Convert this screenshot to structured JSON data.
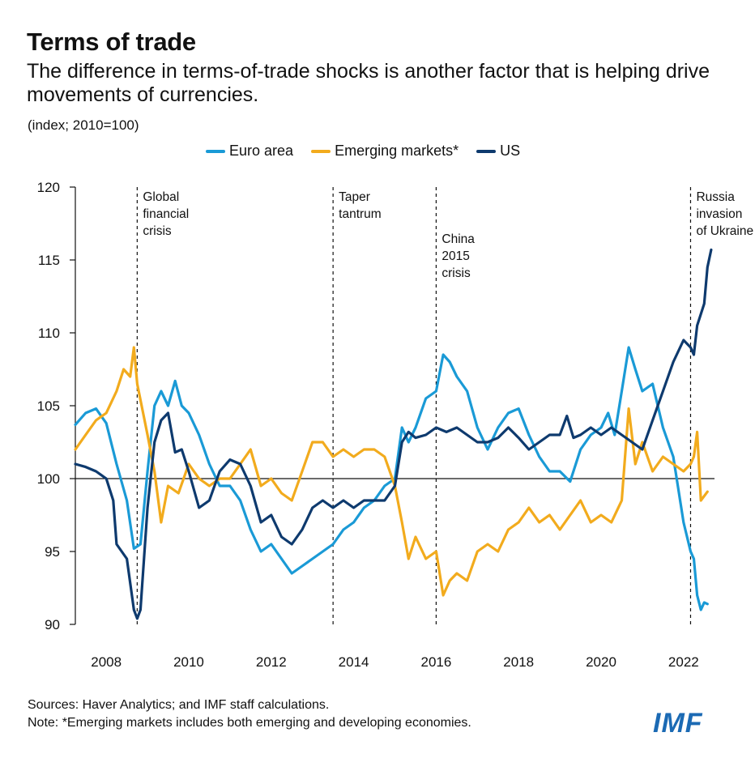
{
  "header": {
    "title": "Terms of trade",
    "subtitle": "The difference in terms-of-trade shocks is another factor that is helping drive movements of currencies.",
    "units": "(index; 2010=100)"
  },
  "footer": {
    "sources": "Sources: Haver Analytics; and IMF staff calculations.",
    "note": "Note: *Emerging markets includes both emerging and developing economies."
  },
  "logo": "IMF",
  "chart_data": {
    "type": "line",
    "ylim": [
      90,
      120
    ],
    "xlim": [
      2007.25,
      2022.75
    ],
    "yticks": [
      90,
      95,
      100,
      105,
      110,
      115,
      120
    ],
    "xticks": [
      2008,
      2010,
      2012,
      2014,
      2016,
      2018,
      2020,
      2022
    ],
    "baseline": 100,
    "grid": false,
    "legend_position": "top",
    "series": [
      {
        "name": "Euro area",
        "color": "#1a9ad6",
        "points": [
          [
            2007.25,
            103.7
          ],
          [
            2007.5,
            104.5
          ],
          [
            2007.75,
            104.8
          ],
          [
            2008.0,
            103.8
          ],
          [
            2008.25,
            101.0
          ],
          [
            2008.5,
            98.5
          ],
          [
            2008.67,
            95.2
          ],
          [
            2008.83,
            95.5
          ],
          [
            2009.0,
            100.5
          ],
          [
            2009.17,
            105.0
          ],
          [
            2009.33,
            106.0
          ],
          [
            2009.5,
            105.0
          ],
          [
            2009.67,
            106.7
          ],
          [
            2009.83,
            105.0
          ],
          [
            2010.0,
            104.5
          ],
          [
            2010.25,
            103.0
          ],
          [
            2010.5,
            101.0
          ],
          [
            2010.75,
            99.5
          ],
          [
            2011.0,
            99.5
          ],
          [
            2011.25,
            98.5
          ],
          [
            2011.5,
            96.5
          ],
          [
            2011.75,
            95.0
          ],
          [
            2012.0,
            95.5
          ],
          [
            2012.25,
            94.5
          ],
          [
            2012.5,
            93.5
          ],
          [
            2012.75,
            94.0
          ],
          [
            2013.0,
            94.5
          ],
          [
            2013.25,
            95.0
          ],
          [
            2013.5,
            95.5
          ],
          [
            2013.75,
            96.5
          ],
          [
            2014.0,
            97.0
          ],
          [
            2014.25,
            98.0
          ],
          [
            2014.5,
            98.5
          ],
          [
            2014.75,
            99.5
          ],
          [
            2015.0,
            100.0
          ],
          [
            2015.17,
            103.5
          ],
          [
            2015.33,
            102.5
          ],
          [
            2015.5,
            103.5
          ],
          [
            2015.75,
            105.5
          ],
          [
            2016.0,
            106.0
          ],
          [
            2016.17,
            108.5
          ],
          [
            2016.33,
            108.0
          ],
          [
            2016.5,
            107.0
          ],
          [
            2016.75,
            106.0
          ],
          [
            2017.0,
            103.5
          ],
          [
            2017.25,
            102.0
          ],
          [
            2017.5,
            103.5
          ],
          [
            2017.75,
            104.5
          ],
          [
            2018.0,
            104.8
          ],
          [
            2018.25,
            103.0
          ],
          [
            2018.5,
            101.5
          ],
          [
            2018.75,
            100.5
          ],
          [
            2019.0,
            100.5
          ],
          [
            2019.25,
            99.8
          ],
          [
            2019.5,
            102.0
          ],
          [
            2019.75,
            103.0
          ],
          [
            2020.0,
            103.5
          ],
          [
            2020.17,
            104.5
          ],
          [
            2020.33,
            103.0
          ],
          [
            2020.5,
            106.0
          ],
          [
            2020.67,
            109.0
          ],
          [
            2020.83,
            107.5
          ],
          [
            2021.0,
            106.0
          ],
          [
            2021.25,
            106.5
          ],
          [
            2021.5,
            103.5
          ],
          [
            2021.75,
            101.5
          ],
          [
            2022.0,
            97.0
          ],
          [
            2022.17,
            95.0
          ],
          [
            2022.25,
            94.5
          ],
          [
            2022.33,
            92.0
          ],
          [
            2022.42,
            91.0
          ],
          [
            2022.5,
            91.5
          ],
          [
            2022.58,
            91.4
          ]
        ]
      },
      {
        "name": "Emerging markets*",
        "color": "#f2ab1d",
        "points": [
          [
            2007.25,
            102.0
          ],
          [
            2007.5,
            103.0
          ],
          [
            2007.75,
            104.0
          ],
          [
            2008.0,
            104.5
          ],
          [
            2008.25,
            106.0
          ],
          [
            2008.42,
            107.5
          ],
          [
            2008.58,
            107.0
          ],
          [
            2008.67,
            109.0
          ],
          [
            2008.75,
            106.5
          ],
          [
            2009.0,
            103.0
          ],
          [
            2009.17,
            100.5
          ],
          [
            2009.33,
            97.0
          ],
          [
            2009.5,
            99.5
          ],
          [
            2009.75,
            99.0
          ],
          [
            2010.0,
            101.0
          ],
          [
            2010.25,
            100.0
          ],
          [
            2010.5,
            99.5
          ],
          [
            2010.75,
            100.0
          ],
          [
            2011.0,
            100.0
          ],
          [
            2011.25,
            101.0
          ],
          [
            2011.5,
            102.0
          ],
          [
            2011.75,
            99.5
          ],
          [
            2012.0,
            100.0
          ],
          [
            2012.25,
            99.0
          ],
          [
            2012.5,
            98.5
          ],
          [
            2012.75,
            100.5
          ],
          [
            2013.0,
            102.5
          ],
          [
            2013.25,
            102.5
          ],
          [
            2013.5,
            101.5
          ],
          [
            2013.75,
            102.0
          ],
          [
            2014.0,
            101.5
          ],
          [
            2014.25,
            102.0
          ],
          [
            2014.5,
            102.0
          ],
          [
            2014.75,
            101.5
          ],
          [
            2015.0,
            99.5
          ],
          [
            2015.17,
            97.0
          ],
          [
            2015.33,
            94.5
          ],
          [
            2015.5,
            96.0
          ],
          [
            2015.75,
            94.5
          ],
          [
            2016.0,
            95.0
          ],
          [
            2016.17,
            92.0
          ],
          [
            2016.33,
            93.0
          ],
          [
            2016.5,
            93.5
          ],
          [
            2016.75,
            93.0
          ],
          [
            2017.0,
            95.0
          ],
          [
            2017.25,
            95.5
          ],
          [
            2017.5,
            95.0
          ],
          [
            2017.75,
            96.5
          ],
          [
            2018.0,
            97.0
          ],
          [
            2018.25,
            98.0
          ],
          [
            2018.5,
            97.0
          ],
          [
            2018.75,
            97.5
          ],
          [
            2019.0,
            96.5
          ],
          [
            2019.25,
            97.5
          ],
          [
            2019.5,
            98.5
          ],
          [
            2019.75,
            97.0
          ],
          [
            2020.0,
            97.5
          ],
          [
            2020.25,
            97.0
          ],
          [
            2020.5,
            98.5
          ],
          [
            2020.67,
            104.8
          ],
          [
            2020.83,
            101.0
          ],
          [
            2021.0,
            102.5
          ],
          [
            2021.25,
            100.5
          ],
          [
            2021.5,
            101.5
          ],
          [
            2021.75,
            101.0
          ],
          [
            2022.0,
            100.5
          ],
          [
            2022.17,
            101.0
          ],
          [
            2022.25,
            101.5
          ],
          [
            2022.33,
            103.2
          ],
          [
            2022.42,
            98.5
          ],
          [
            2022.58,
            99.1
          ]
        ]
      },
      {
        "name": "US",
        "color": "#0e3a6e",
        "points": [
          [
            2007.25,
            101.0
          ],
          [
            2007.5,
            100.8
          ],
          [
            2007.75,
            100.5
          ],
          [
            2008.0,
            100.0
          ],
          [
            2008.17,
            98.5
          ],
          [
            2008.25,
            95.5
          ],
          [
            2008.5,
            94.5
          ],
          [
            2008.67,
            91.0
          ],
          [
            2008.75,
            90.4
          ],
          [
            2008.83,
            91.0
          ],
          [
            2009.0,
            98.0
          ],
          [
            2009.17,
            102.5
          ],
          [
            2009.33,
            104.0
          ],
          [
            2009.5,
            104.5
          ],
          [
            2009.67,
            101.8
          ],
          [
            2009.83,
            102.0
          ],
          [
            2010.0,
            100.5
          ],
          [
            2010.25,
            98.0
          ],
          [
            2010.5,
            98.5
          ],
          [
            2010.75,
            100.5
          ],
          [
            2011.0,
            101.3
          ],
          [
            2011.25,
            101.0
          ],
          [
            2011.5,
            99.5
          ],
          [
            2011.75,
            97.0
          ],
          [
            2012.0,
            97.5
          ],
          [
            2012.25,
            96.0
          ],
          [
            2012.5,
            95.5
          ],
          [
            2012.75,
            96.5
          ],
          [
            2013.0,
            98.0
          ],
          [
            2013.25,
            98.5
          ],
          [
            2013.5,
            98.0
          ],
          [
            2013.75,
            98.5
          ],
          [
            2014.0,
            98.0
          ],
          [
            2014.25,
            98.5
          ],
          [
            2014.5,
            98.5
          ],
          [
            2014.75,
            98.5
          ],
          [
            2015.0,
            99.5
          ],
          [
            2015.17,
            102.5
          ],
          [
            2015.33,
            103.2
          ],
          [
            2015.5,
            102.8
          ],
          [
            2015.75,
            103.0
          ],
          [
            2016.0,
            103.5
          ],
          [
            2016.25,
            103.2
          ],
          [
            2016.5,
            103.5
          ],
          [
            2016.75,
            103.0
          ],
          [
            2017.0,
            102.5
          ],
          [
            2017.25,
            102.5
          ],
          [
            2017.5,
            102.8
          ],
          [
            2017.75,
            103.5
          ],
          [
            2018.0,
            102.8
          ],
          [
            2018.25,
            102.0
          ],
          [
            2018.5,
            102.5
          ],
          [
            2018.75,
            103.0
          ],
          [
            2019.0,
            103.0
          ],
          [
            2019.17,
            104.3
          ],
          [
            2019.33,
            102.8
          ],
          [
            2019.5,
            103.0
          ],
          [
            2019.75,
            103.5
          ],
          [
            2020.0,
            103.0
          ],
          [
            2020.25,
            103.5
          ],
          [
            2020.5,
            103.0
          ],
          [
            2020.75,
            102.5
          ],
          [
            2021.0,
            102.0
          ],
          [
            2021.25,
            104.0
          ],
          [
            2021.5,
            106.0
          ],
          [
            2021.75,
            108.0
          ],
          [
            2022.0,
            109.5
          ],
          [
            2022.17,
            109.0
          ],
          [
            2022.25,
            108.5
          ],
          [
            2022.33,
            110.5
          ],
          [
            2022.5,
            112.0
          ],
          [
            2022.58,
            114.5
          ],
          [
            2022.67,
            115.7
          ]
        ]
      }
    ],
    "events": [
      {
        "x": 2008.75,
        "label": [
          "Global",
          "financial",
          "crisis"
        ],
        "label_side": "right"
      },
      {
        "x": 2013.5,
        "label": [
          "Taper",
          "tantrum"
        ],
        "label_side": "right"
      },
      {
        "x": 2016.0,
        "label": [
          "China",
          "2015",
          "crisis"
        ],
        "label_side": "right",
        "label_low": true
      },
      {
        "x": 2022.17,
        "label": [
          "Russia",
          "invasion",
          "of Ukraine"
        ],
        "label_side": "right"
      }
    ]
  }
}
